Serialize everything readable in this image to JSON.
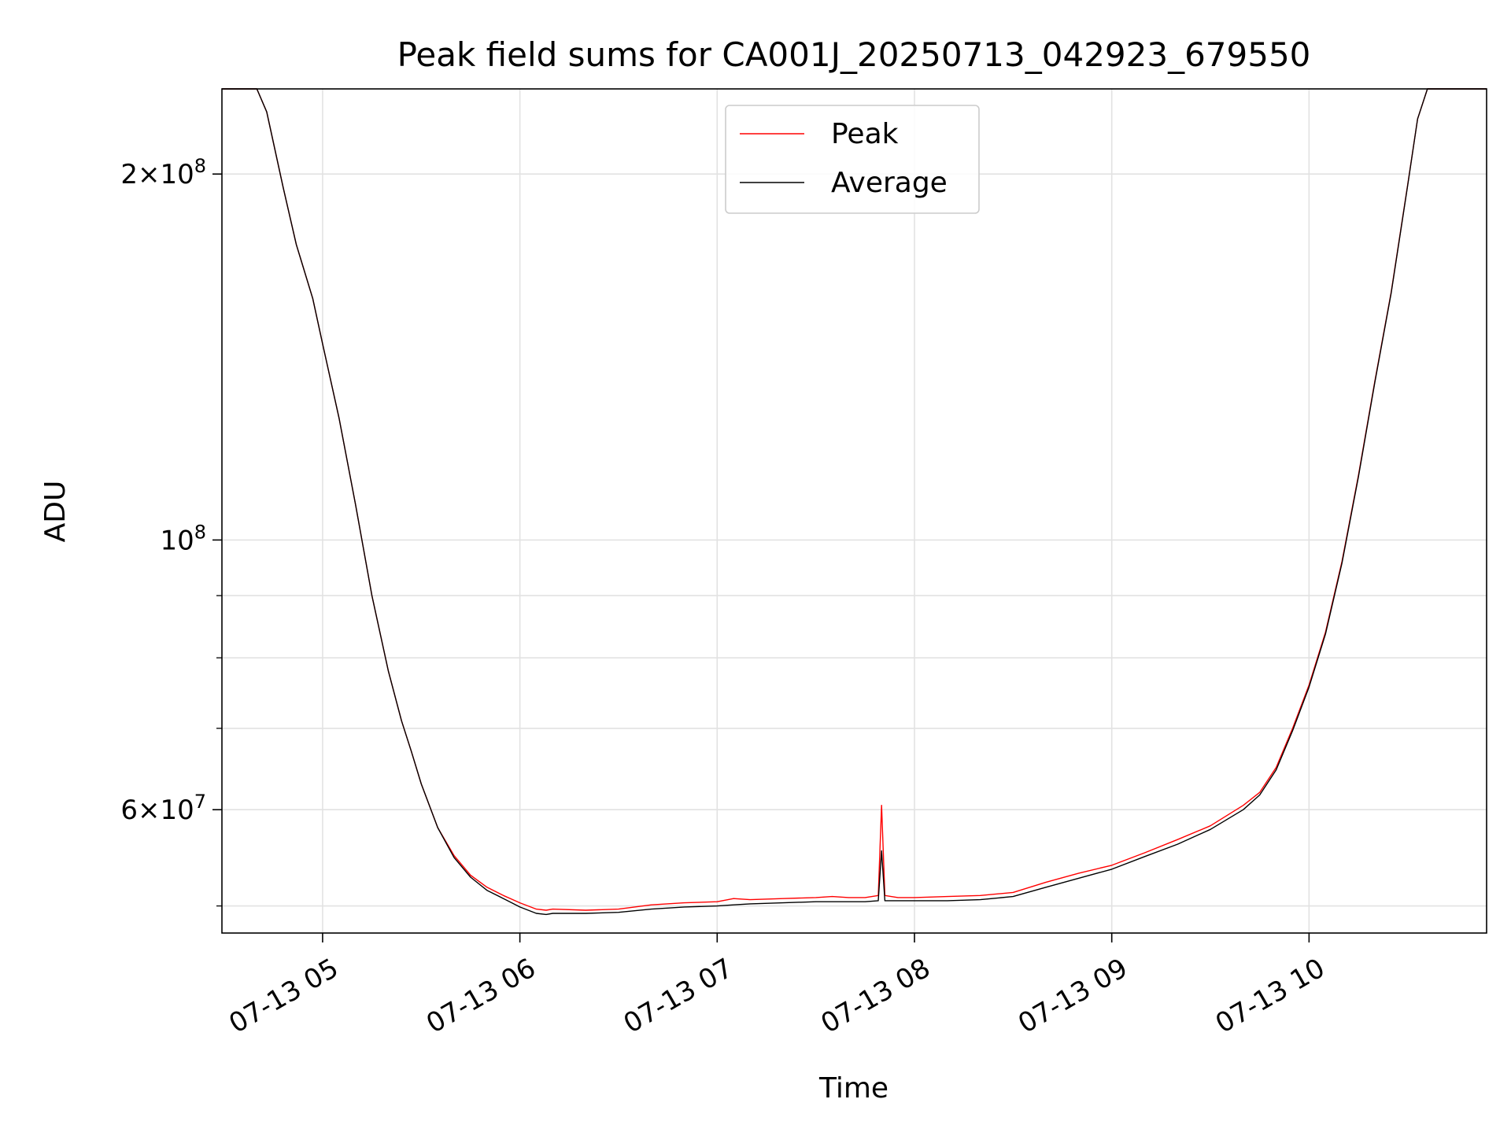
{
  "chart_data": {
    "type": "line",
    "title": "Peak field sums for CA001J_20250713_042923_679550",
    "xlabel": "Time",
    "ylabel": "ADU",
    "y_scale": "log",
    "xlim": [
      "2025-07-13 04:29:23",
      "2025-07-13 10:54:00"
    ],
    "ylim": [
      47500000,
      235000000
    ],
    "x_ticks": [
      {
        "value": "2025-07-13 05:00",
        "label": "07-13 05"
      },
      {
        "value": "2025-07-13 06:00",
        "label": "07-13 06"
      },
      {
        "value": "2025-07-13 07:00",
        "label": "07-13 07"
      },
      {
        "value": "2025-07-13 08:00",
        "label": "07-13 08"
      },
      {
        "value": "2025-07-13 09:00",
        "label": "07-13 09"
      },
      {
        "value": "2025-07-13 10:00",
        "label": "07-13 10"
      }
    ],
    "y_ticks": [
      {
        "value": 200000000,
        "label": "2×10^8",
        "mantissa": "2",
        "exponent": "8"
      },
      {
        "value": 100000000,
        "label": "10^8",
        "mantissa": "",
        "exponent": "8"
      },
      {
        "value": 60000000,
        "label": "6×10^7",
        "mantissa": "6",
        "exponent": "7"
      }
    ],
    "y_minor_ticks": [
      50000000,
      70000000,
      80000000,
      90000000
    ],
    "grid": true,
    "legend_position": "top-center",
    "series": [
      {
        "name": "Peak",
        "color": "#ff0000",
        "points": [
          [
            "2025-07-13 04:29:23",
            235000000
          ],
          [
            "2025-07-13 04:40",
            235000000
          ],
          [
            "2025-07-13 04:43",
            225000000
          ],
          [
            "2025-07-13 04:48",
            195000000
          ],
          [
            "2025-07-13 04:52",
            175000000
          ],
          [
            "2025-07-13 04:57",
            158000000
          ],
          [
            "2025-07-13 05:00",
            145000000
          ],
          [
            "2025-07-13 05:05",
            126000000
          ],
          [
            "2025-07-13 05:10",
            107000000
          ],
          [
            "2025-07-13 05:15",
            90000000
          ],
          [
            "2025-07-13 05:20",
            78000000
          ],
          [
            "2025-07-13 05:24",
            71000000
          ],
          [
            "2025-07-13 05:27",
            67000000
          ],
          [
            "2025-07-13 05:30",
            63000000
          ],
          [
            "2025-07-13 05:35",
            58000000
          ],
          [
            "2025-07-13 05:40",
            55000000
          ],
          [
            "2025-07-13 05:45",
            53000000
          ],
          [
            "2025-07-13 05:50",
            51800000
          ],
          [
            "2025-07-13 05:55",
            51000000
          ],
          [
            "2025-07-13 06:00",
            50300000
          ],
          [
            "2025-07-13 06:05",
            49700000
          ],
          [
            "2025-07-13 06:08",
            49600000
          ],
          [
            "2025-07-13 06:10",
            49700000
          ],
          [
            "2025-07-13 06:20",
            49600000
          ],
          [
            "2025-07-13 06:30",
            49700000
          ],
          [
            "2025-07-13 06:40",
            50100000
          ],
          [
            "2025-07-13 06:50",
            50300000
          ],
          [
            "2025-07-13 07:00",
            50400000
          ],
          [
            "2025-07-13 07:05",
            50700000
          ],
          [
            "2025-07-13 07:10",
            50600000
          ],
          [
            "2025-07-13 07:20",
            50700000
          ],
          [
            "2025-07-13 07:30",
            50800000
          ],
          [
            "2025-07-13 07:35",
            50900000
          ],
          [
            "2025-07-13 07:40",
            50800000
          ],
          [
            "2025-07-13 07:45",
            50800000
          ],
          [
            "2025-07-13 07:49",
            51000000
          ],
          [
            "2025-07-13 07:50",
            60500000
          ],
          [
            "2025-07-13 07:51",
            51000000
          ],
          [
            "2025-07-13 07:55",
            50800000
          ],
          [
            "2025-07-13 08:00",
            50800000
          ],
          [
            "2025-07-13 08:10",
            50900000
          ],
          [
            "2025-07-13 08:20",
            51000000
          ],
          [
            "2025-07-13 08:30",
            51300000
          ],
          [
            "2025-07-13 08:40",
            52300000
          ],
          [
            "2025-07-13 08:50",
            53200000
          ],
          [
            "2025-07-13 09:00",
            54000000
          ],
          [
            "2025-07-13 09:10",
            55300000
          ],
          [
            "2025-07-13 09:20",
            56700000
          ],
          [
            "2025-07-13 09:30",
            58200000
          ],
          [
            "2025-07-13 09:40",
            60500000
          ],
          [
            "2025-07-13 09:45",
            62000000
          ],
          [
            "2025-07-13 09:50",
            65000000
          ],
          [
            "2025-07-13 09:55",
            70000000
          ],
          [
            "2025-07-13 10:00",
            76000000
          ],
          [
            "2025-07-13 10:05",
            84000000
          ],
          [
            "2025-07-13 10:10",
            96000000
          ],
          [
            "2025-07-13 10:15",
            113000000
          ],
          [
            "2025-07-13 10:20",
            135000000
          ],
          [
            "2025-07-13 10:25",
            160000000
          ],
          [
            "2025-07-13 10:30",
            196000000
          ],
          [
            "2025-07-13 10:33",
            222000000
          ],
          [
            "2025-07-13 10:36",
            235000000
          ],
          [
            "2025-07-13 10:54",
            235000000
          ]
        ]
      },
      {
        "name": "Average",
        "color": "#000000",
        "points": [
          [
            "2025-07-13 04:29:23",
            235000000
          ],
          [
            "2025-07-13 04:40",
            235000000
          ],
          [
            "2025-07-13 04:43",
            225000000
          ],
          [
            "2025-07-13 04:48",
            195000000
          ],
          [
            "2025-07-13 04:52",
            175000000
          ],
          [
            "2025-07-13 04:57",
            158000000
          ],
          [
            "2025-07-13 05:00",
            145000000
          ],
          [
            "2025-07-13 05:05",
            126000000
          ],
          [
            "2025-07-13 05:10",
            107000000
          ],
          [
            "2025-07-13 05:15",
            90000000
          ],
          [
            "2025-07-13 05:20",
            78000000
          ],
          [
            "2025-07-13 05:24",
            71000000
          ],
          [
            "2025-07-13 05:27",
            67000000
          ],
          [
            "2025-07-13 05:30",
            63000000
          ],
          [
            "2025-07-13 05:35",
            58000000
          ],
          [
            "2025-07-13 05:40",
            54800000
          ],
          [
            "2025-07-13 05:45",
            52800000
          ],
          [
            "2025-07-13 05:50",
            51500000
          ],
          [
            "2025-07-13 05:55",
            50700000
          ],
          [
            "2025-07-13 06:00",
            49900000
          ],
          [
            "2025-07-13 06:05",
            49300000
          ],
          [
            "2025-07-13 06:08",
            49200000
          ],
          [
            "2025-07-13 06:10",
            49300000
          ],
          [
            "2025-07-13 06:20",
            49300000
          ],
          [
            "2025-07-13 06:30",
            49400000
          ],
          [
            "2025-07-13 06:40",
            49700000
          ],
          [
            "2025-07-13 06:50",
            49900000
          ],
          [
            "2025-07-13 07:00",
            50000000
          ],
          [
            "2025-07-13 07:05",
            50100000
          ],
          [
            "2025-07-13 07:10",
            50200000
          ],
          [
            "2025-07-13 07:20",
            50300000
          ],
          [
            "2025-07-13 07:30",
            50400000
          ],
          [
            "2025-07-13 07:35",
            50400000
          ],
          [
            "2025-07-13 07:40",
            50400000
          ],
          [
            "2025-07-13 07:45",
            50400000
          ],
          [
            "2025-07-13 07:49",
            50500000
          ],
          [
            "2025-07-13 07:50",
            55500000
          ],
          [
            "2025-07-13 07:51",
            50500000
          ],
          [
            "2025-07-13 07:55",
            50500000
          ],
          [
            "2025-07-13 08:00",
            50500000
          ],
          [
            "2025-07-13 08:10",
            50500000
          ],
          [
            "2025-07-13 08:20",
            50600000
          ],
          [
            "2025-07-13 08:30",
            50900000
          ],
          [
            "2025-07-13 08:40",
            51800000
          ],
          [
            "2025-07-13 08:50",
            52700000
          ],
          [
            "2025-07-13 09:00",
            53600000
          ],
          [
            "2025-07-13 09:10",
            54900000
          ],
          [
            "2025-07-13 09:20",
            56200000
          ],
          [
            "2025-07-13 09:30",
            57800000
          ],
          [
            "2025-07-13 09:40",
            60000000
          ],
          [
            "2025-07-13 09:45",
            61700000
          ],
          [
            "2025-07-13 09:50",
            64700000
          ],
          [
            "2025-07-13 09:55",
            69700000
          ],
          [
            "2025-07-13 10:00",
            75700000
          ],
          [
            "2025-07-13 10:05",
            83700000
          ],
          [
            "2025-07-13 10:10",
            95700000
          ],
          [
            "2025-07-13 10:15",
            112700000
          ],
          [
            "2025-07-13 10:20",
            134700000
          ],
          [
            "2025-07-13 10:25",
            159700000
          ],
          [
            "2025-07-13 10:30",
            195700000
          ],
          [
            "2025-07-13 10:33",
            222000000
          ],
          [
            "2025-07-13 10:36",
            235000000
          ],
          [
            "2025-07-13 10:54",
            235000000
          ]
        ]
      }
    ]
  }
}
